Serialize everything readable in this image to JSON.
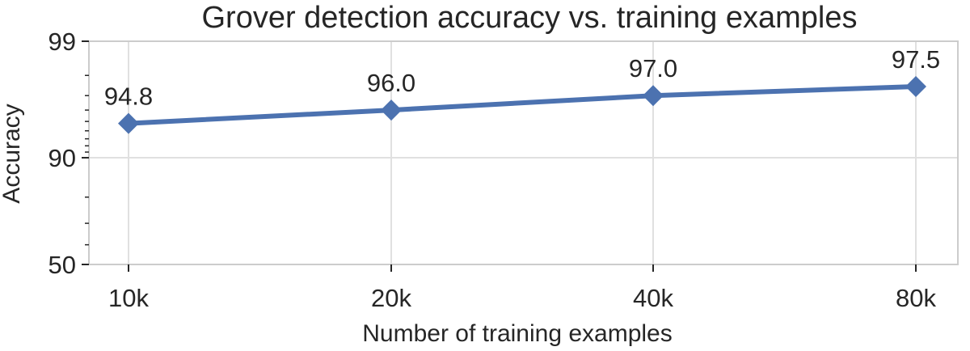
{
  "chart_data": {
    "type": "line",
    "title": "Grover detection accuracy vs. training examples",
    "xlabel": "Number of training examples",
    "ylabel": "Accuracy",
    "categories": [
      "10k",
      "20k",
      "40k",
      "80k"
    ],
    "values": [
      94.8,
      96.0,
      97.0,
      97.5
    ],
    "data_labels": [
      "94.8",
      "96.0",
      "97.0",
      "97.5"
    ],
    "y_scale": "logit",
    "ylim": [
      50,
      99
    ],
    "y_ticks": [
      "50",
      "90",
      "99"
    ],
    "y_tick_values": [
      50,
      90,
      99
    ],
    "y_minor_tick_values": [
      60,
      70,
      80,
      91,
      92,
      93,
      94,
      95,
      96,
      97,
      98
    ],
    "grid": true,
    "legend": "none",
    "series_color": "#4c72b0",
    "marker": "diamond"
  }
}
